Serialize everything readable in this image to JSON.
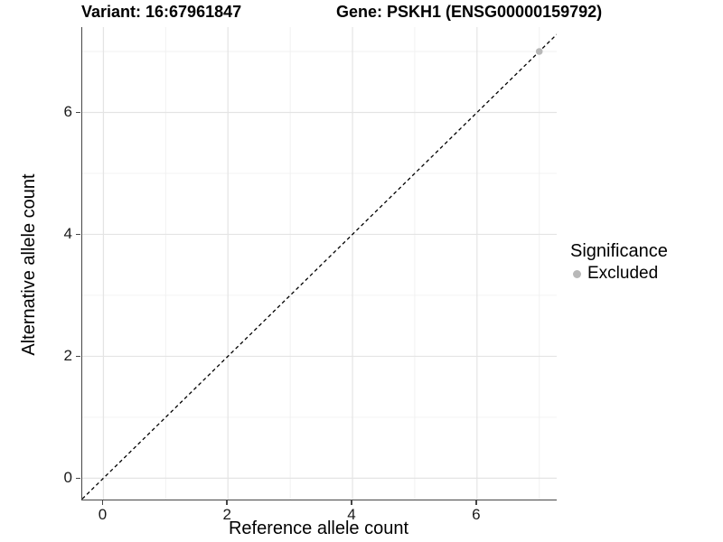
{
  "chart_data": {
    "type": "scatter",
    "titles": {
      "left": "Variant: 16:67961847",
      "right": "Gene: PSKH1 (ENSG00000159792)"
    },
    "xlabel": "Reference allele count",
    "ylabel": "Alternative allele count",
    "xlim": [
      -0.34,
      7.28
    ],
    "ylim": [
      -0.35,
      7.4
    ],
    "x_major_ticks": [
      0,
      2,
      4,
      6
    ],
    "y_major_ticks": [
      0,
      2,
      4,
      6
    ],
    "x_minor_ticks": [
      1,
      3,
      5,
      7
    ],
    "y_minor_ticks": [
      1,
      3,
      5,
      7
    ],
    "grid": true,
    "reference_line": {
      "kind": "identity",
      "style": "dashed",
      "color": "#000000"
    },
    "series": [
      {
        "name": "Excluded",
        "color": "#b8b8b8",
        "points": [
          {
            "x": 7,
            "y": 7
          }
        ]
      }
    ],
    "legend": {
      "position": "right",
      "title": "Significance",
      "entries": [
        {
          "label": "Excluded",
          "color": "#b8b8b8"
        }
      ]
    },
    "colors": {
      "grid_major": "#e4e4e4",
      "grid_minor": "#f0f0f0",
      "axis_line": "#464646",
      "text": "#000000"
    }
  }
}
